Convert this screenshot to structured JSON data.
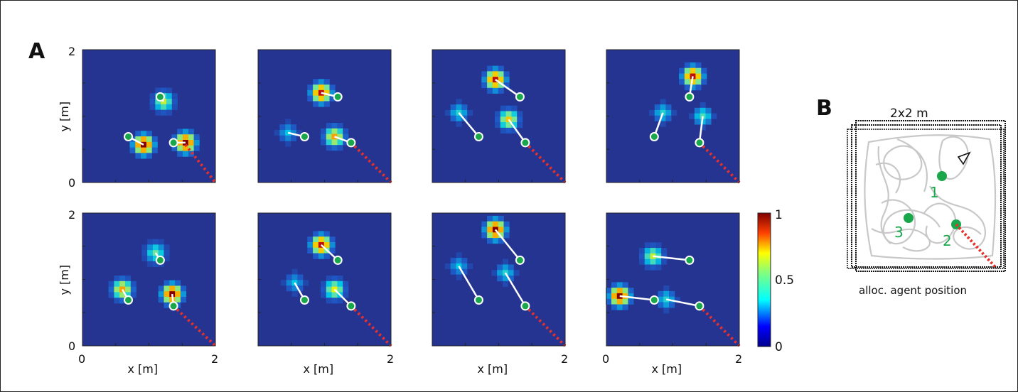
{
  "figure": {
    "panel_a_label": "A",
    "panel_b_label": "B"
  },
  "colors": {
    "heatmap_bg": "#253491",
    "landmark_green": "#1aa64a",
    "trajectory_gray": "#c8c8c8",
    "dotted_red": "#e5302c",
    "arrow_white": "#ffffff"
  },
  "chart_data": [
    {
      "type": "heatmap",
      "panel": "A1",
      "xlim": [
        0,
        2
      ],
      "ylim": [
        0,
        2
      ],
      "ylabel": "y [m]",
      "yticks": [
        "0",
        "2"
      ],
      "xlabel": "",
      "xticks": [],
      "blobs": [
        {
          "x": 1.22,
          "y": 1.22,
          "i": 0.6
        },
        {
          "x": 0.92,
          "y": 0.57,
          "i": 1.0
        },
        {
          "x": 1.55,
          "y": 0.6,
          "i": 1.0
        }
      ],
      "landmarks": [
        {
          "x": 1.17,
          "y": 1.29
        },
        {
          "x": 0.69,
          "y": 0.69
        },
        {
          "x": 1.37,
          "y": 0.6
        }
      ],
      "agent": {
        "x": 1.55,
        "y": 0.57
      }
    },
    {
      "type": "heatmap",
      "panel": "A2",
      "xlim": [
        0,
        2
      ],
      "ylim": [
        0,
        2
      ],
      "ylabel": "",
      "yticks": [],
      "xlabel": "",
      "xticks": [],
      "blobs": [
        {
          "x": 0.95,
          "y": 1.35,
          "i": 0.95
        },
        {
          "x": 0.45,
          "y": 0.75,
          "i": 0.35
        },
        {
          "x": 1.15,
          "y": 0.69,
          "i": 0.75
        }
      ],
      "landmarks": [
        {
          "x": 1.2,
          "y": 1.29
        },
        {
          "x": 0.7,
          "y": 0.69
        },
        {
          "x": 1.4,
          "y": 0.6
        }
      ],
      "agent": {
        "x": 1.4,
        "y": 0.6
      }
    },
    {
      "type": "heatmap",
      "panel": "A3",
      "xlim": [
        0,
        2
      ],
      "ylim": [
        0,
        2
      ],
      "ylabel": "",
      "yticks": [],
      "xlabel": "",
      "xticks": [],
      "blobs": [
        {
          "x": 0.95,
          "y": 1.55,
          "i": 0.95
        },
        {
          "x": 0.4,
          "y": 1.05,
          "i": 0.4
        },
        {
          "x": 1.15,
          "y": 0.95,
          "i": 0.7
        }
      ],
      "landmarks": [
        {
          "x": 1.32,
          "y": 1.29
        },
        {
          "x": 0.7,
          "y": 0.69
        },
        {
          "x": 1.4,
          "y": 0.6
        }
      ],
      "agent": {
        "x": 1.4,
        "y": 0.6
      }
    },
    {
      "type": "heatmap",
      "panel": "A4",
      "xlim": [
        0,
        2
      ],
      "ylim": [
        0,
        2
      ],
      "ylabel": "",
      "yticks": [],
      "xlabel": "",
      "xticks": [],
      "blobs": [
        {
          "x": 1.3,
          "y": 1.6,
          "i": 0.95
        },
        {
          "x": 0.85,
          "y": 1.05,
          "i": 0.4
        },
        {
          "x": 1.45,
          "y": 1.0,
          "i": 0.45
        }
      ],
      "landmarks": [
        {
          "x": 1.25,
          "y": 1.29
        },
        {
          "x": 0.72,
          "y": 0.69
        },
        {
          "x": 1.4,
          "y": 0.6
        }
      ],
      "agent": {
        "x": 1.4,
        "y": 0.6
      }
    },
    {
      "type": "heatmap",
      "panel": "A5",
      "xlim": [
        0,
        2
      ],
      "ylim": [
        0,
        2
      ],
      "ylabel": "y [m]",
      "yticks": [
        "0",
        "2"
      ],
      "xlabel": "",
      "xticks": [
        "0"
      ],
      "blobs": [
        {
          "x": 1.1,
          "y": 1.4,
          "i": 0.5
        },
        {
          "x": 0.6,
          "y": 0.85,
          "i": 0.75
        },
        {
          "x": 1.35,
          "y": 0.78,
          "i": 1.0
        }
      ],
      "landmarks": [
        {
          "x": 1.17,
          "y": 1.29
        },
        {
          "x": 0.69,
          "y": 0.69
        },
        {
          "x": 1.37,
          "y": 0.6
        }
      ],
      "agent": {
        "x": 1.37,
        "y": 0.6
      }
    },
    {
      "type": "heatmap",
      "panel": "A6",
      "xlim": [
        0,
        2
      ],
      "ylim": [
        0,
        2
      ],
      "ylabel": "",
      "yticks": [],
      "xlabel": "",
      "xticks": [],
      "blobs": [
        {
          "x": 0.95,
          "y": 1.52,
          "i": 0.95
        },
        {
          "x": 0.55,
          "y": 0.95,
          "i": 0.35
        },
        {
          "x": 1.15,
          "y": 0.85,
          "i": 0.65
        }
      ],
      "landmarks": [
        {
          "x": 1.2,
          "y": 1.29
        },
        {
          "x": 0.7,
          "y": 0.69
        },
        {
          "x": 1.4,
          "y": 0.6
        }
      ],
      "agent": {
        "x": 1.4,
        "y": 0.6
      }
    },
    {
      "type": "heatmap",
      "panel": "A7",
      "xlim": [
        0,
        2
      ],
      "ylim": [
        0,
        2
      ],
      "ylabel": "",
      "yticks": [],
      "xlabel": "",
      "xticks": [],
      "blobs": [
        {
          "x": 0.95,
          "y": 1.75,
          "i": 1.0
        },
        {
          "x": 0.4,
          "y": 1.2,
          "i": 0.35
        },
        {
          "x": 1.1,
          "y": 1.1,
          "i": 0.4
        }
      ],
      "landmarks": [
        {
          "x": 1.32,
          "y": 1.29
        },
        {
          "x": 0.7,
          "y": 0.69
        },
        {
          "x": 1.4,
          "y": 0.6
        }
      ],
      "agent": {
        "x": 1.4,
        "y": 0.6
      }
    },
    {
      "type": "heatmap",
      "panel": "A8",
      "xlim": [
        0,
        2
      ],
      "ylim": [
        0,
        2
      ],
      "ylabel": "",
      "yticks": [],
      "xlabel": "",
      "xticks": [
        "0"
      ],
      "blobs": [
        {
          "x": 0.7,
          "y": 1.35,
          "i": 0.6
        },
        {
          "x": 0.2,
          "y": 0.75,
          "i": 1.0
        },
        {
          "x": 0.9,
          "y": 0.7,
          "i": 0.4
        }
      ],
      "landmarks": [
        {
          "x": 1.25,
          "y": 1.29
        },
        {
          "x": 0.72,
          "y": 0.69
        },
        {
          "x": 1.4,
          "y": 0.6
        }
      ],
      "agent": {
        "x": 1.4,
        "y": 0.6
      }
    }
  ],
  "bottom_xlabel": "x [m]",
  "bottom_last_tick": "2",
  "colorbar": {
    "ticks": [
      "1",
      "0.5",
      "0"
    ],
    "range": [
      0,
      1
    ]
  },
  "panel_b": {
    "title": "2x2 m",
    "caption": "alloc. agent position",
    "landmarks": [
      {
        "label": "1"
      },
      {
        "label": "3"
      },
      {
        "label": "2"
      }
    ]
  }
}
